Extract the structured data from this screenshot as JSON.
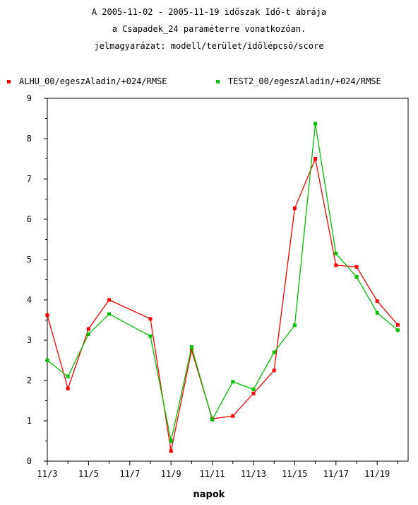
{
  "title_lines": [
    "A 2005-11-02 - 2005-11-19 időszak Idő-t ábrája",
    "a Csapadek_24 paraméterre vonatkozóan.",
    "jelmagyarázat: modell/terület/időlépcső/score"
  ],
  "chart_data": {
    "type": "line",
    "title": "A 2005-11-02 - 2005-11-19 időszak Idő-t ábrája a Csapadek_24 paraméterre vonatkozóan.",
    "xlabel": "napok",
    "ylabel": "",
    "x": [
      "11/3",
      "11/4",
      "11/5",
      "11/6",
      "11/8",
      "11/9",
      "11/10",
      "11/11",
      "11/12",
      "11/13",
      "11/14",
      "11/15",
      "11/16",
      "11/17",
      "11/18",
      "11/19",
      "11/20"
    ],
    "x_ticks": [
      "11/3",
      "11/5",
      "11/7",
      "11/9",
      "11/11",
      "11/13",
      "11/15",
      "11/17",
      "11/19"
    ],
    "ylim": [
      0,
      9
    ],
    "y_ticks": [
      "0",
      "1",
      "2",
      "3",
      "4",
      "5",
      "6",
      "7",
      "8",
      "9"
    ],
    "grid": false,
    "legend_position": "top",
    "series": [
      {
        "name": "ALHU_00/egeszAladin/+024/RMSE",
        "color": "#ff0000",
        "values": [
          3.62,
          1.8,
          3.28,
          4.0,
          3.53,
          0.25,
          2.75,
          1.05,
          1.12,
          1.68,
          2.25,
          6.27,
          7.5,
          4.86,
          4.82,
          3.97,
          3.38
        ]
      },
      {
        "name": "TEST2_00/egeszAladin/+024/RMSE",
        "color": "#00c000",
        "values": [
          2.5,
          2.1,
          3.15,
          3.65,
          3.1,
          0.5,
          2.83,
          1.03,
          1.97,
          1.78,
          2.7,
          3.37,
          8.37,
          5.15,
          4.57,
          3.68,
          3.25
        ]
      }
    ]
  }
}
